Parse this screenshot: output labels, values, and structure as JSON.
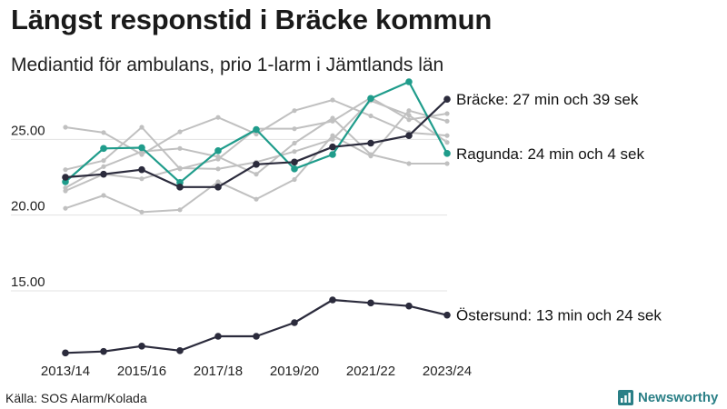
{
  "header": {
    "title": "Längst responstid i Bräcke kommun",
    "subtitle": "Mediantid för ambulans, prio 1-larm i Jämtlands län"
  },
  "footer": {
    "source": "Källa: SOS Alarm/Kolada",
    "brand": "Newsworthy",
    "brand_icon": "bar-chart-logo-icon",
    "brand_color": "#2a7f86"
  },
  "chart_data": {
    "type": "line",
    "x": [
      "2013/14",
      "2014/15",
      "2015/16",
      "2016/17",
      "2017/18",
      "2018/19",
      "2019/20",
      "2020/21",
      "2021/22",
      "2022/23",
      "2023/24"
    ],
    "x_tick_labels": [
      "2013/14",
      "2015/16",
      "2017/18",
      "2019/20",
      "2021/22",
      "2023/24"
    ],
    "y_ticks": [
      15,
      20,
      25
    ],
    "y_tick_labels": [
      "15.00",
      "20.00",
      "25.00"
    ],
    "ylim": [
      10.5,
      28.5
    ],
    "grid": true,
    "colors": {
      "highlight_dark": "#2b2b3c",
      "highlight_teal": "#1f9c8b",
      "background_lines": "#c0c0c0",
      "grid": "#e3e3e3"
    },
    "series": [
      {
        "name": "Bräcke",
        "label": "Bräcke: 27 min och 39 sek",
        "style": "dark",
        "values": [
          22.5,
          22.7,
          23.0,
          21.85,
          21.85,
          23.35,
          23.5,
          24.5,
          24.75,
          25.25,
          27.65
        ]
      },
      {
        "name": "Ragunda",
        "label": "Ragunda: 24 min och 4 sek",
        "style": "teal",
        "values": [
          22.2,
          24.4,
          24.45,
          22.15,
          24.25,
          25.65,
          23.05,
          24.0,
          27.7,
          28.8,
          24.07
        ]
      },
      {
        "name": "Östersund",
        "label": "Östersund: 13 min och 24 sek",
        "style": "dark",
        "values": [
          10.9,
          11.0,
          11.35,
          11.05,
          12.0,
          12.0,
          12.9,
          14.4,
          14.2,
          14.0,
          13.4
        ]
      },
      {
        "style": "gray",
        "values": [
          25.8,
          25.45,
          24.0,
          25.5,
          26.45,
          25.35,
          26.9,
          27.6,
          26.55,
          25.45,
          25.25
        ]
      },
      {
        "style": "gray",
        "values": [
          23.0,
          23.6,
          25.8,
          23.05,
          23.7,
          25.7,
          25.7,
          26.2,
          27.75,
          26.3,
          26.7
        ]
      },
      {
        "style": "gray",
        "values": [
          21.8,
          23.2,
          24.2,
          24.4,
          23.85,
          22.7,
          24.75,
          26.4,
          24.0,
          23.4,
          23.4
        ]
      },
      {
        "style": "gray",
        "values": [
          20.45,
          21.3,
          20.2,
          20.35,
          22.2,
          21.05,
          22.35,
          25.25,
          23.9,
          26.9,
          26.2
        ]
      },
      {
        "style": "gray",
        "values": [
          21.6,
          22.7,
          22.4,
          23.1,
          23.05,
          23.5,
          24.2,
          25.0,
          27.55,
          26.6,
          24.8
        ]
      }
    ]
  }
}
